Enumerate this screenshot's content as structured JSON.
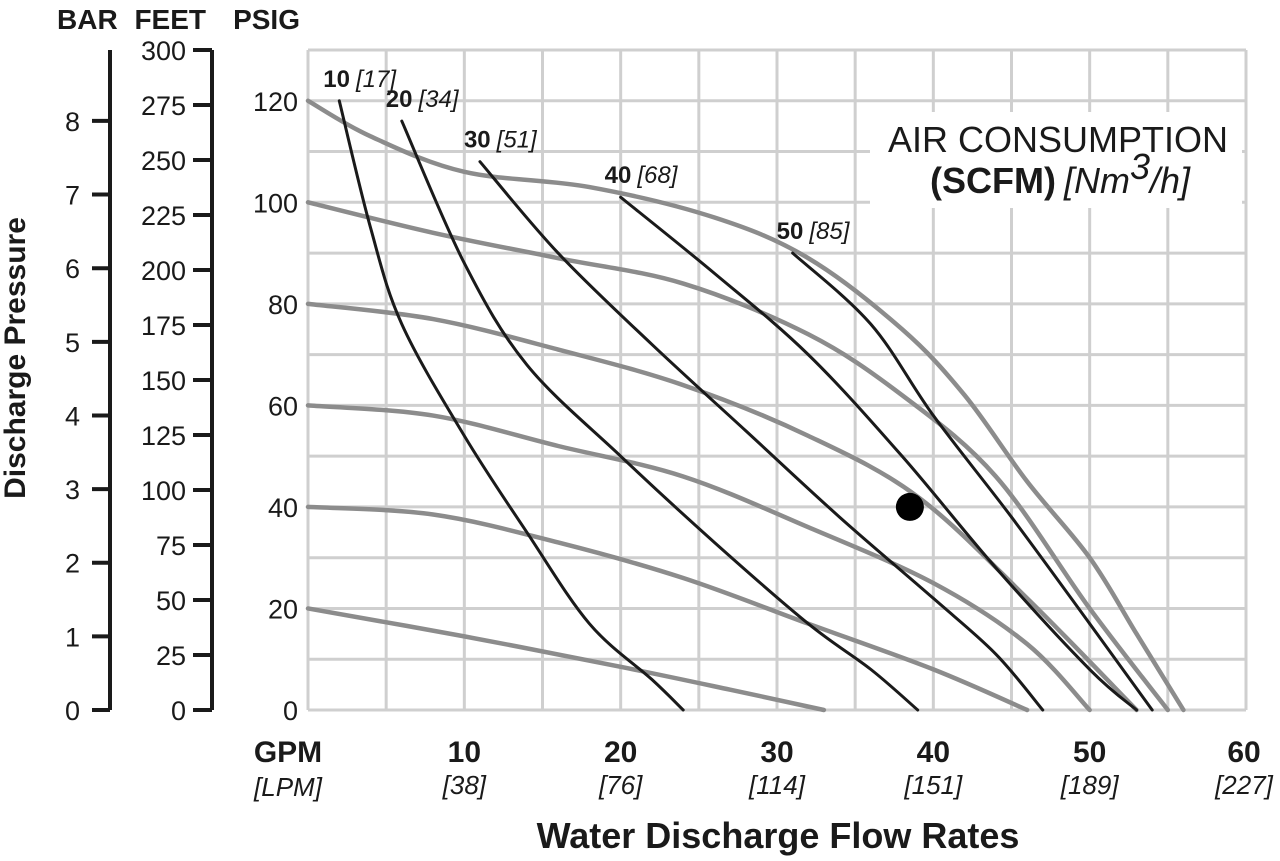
{
  "chart_data": {
    "type": "line",
    "title_line1": "AIR CONSUMPTION",
    "title_bold": "(SCFM)",
    "title_italic_pre": "[Nm",
    "title_italic_sup": "3",
    "title_italic_post": "/h]",
    "xlabel": "Water Discharge Flow Rates",
    "ylabel": "Discharge Pressure",
    "x_head": "GPM",
    "x_head_sub": "[LPM]",
    "x_ticks": [
      {
        "gpm": 10,
        "label": "10",
        "sub": "[38]"
      },
      {
        "gpm": 20,
        "label": "20",
        "sub": "[76]"
      },
      {
        "gpm": 30,
        "label": "30",
        "sub": "[114]"
      },
      {
        "gpm": 40,
        "label": "40",
        "sub": "[151]"
      },
      {
        "gpm": 50,
        "label": "50",
        "sub": "[189]"
      },
      {
        "gpm": 60,
        "label": "60",
        "sub": "[227]"
      }
    ],
    "xlim": [
      0,
      60
    ],
    "ylim": [
      0,
      130
    ],
    "psig_head": "PSIG",
    "psig_ticks": [
      "0",
      "20",
      "40",
      "60",
      "80",
      "100",
      "120"
    ],
    "feet_head": "FEET",
    "feet_ticks": [
      "0",
      "25",
      "50",
      "75",
      "100",
      "125",
      "150",
      "175",
      "200",
      "225",
      "250",
      "275",
      "300"
    ],
    "bar_head": "BAR",
    "bar_ticks": [
      "0",
      "1",
      "2",
      "3",
      "4",
      "5",
      "6",
      "7",
      "8"
    ],
    "pressure_curves": [
      {
        "points": [
          [
            0,
            20
          ],
          [
            10,
            14.5
          ],
          [
            20,
            8.5
          ],
          [
            27,
            4
          ],
          [
            33,
            0
          ]
        ]
      },
      {
        "points": [
          [
            0,
            40
          ],
          [
            8,
            38.5
          ],
          [
            16,
            33
          ],
          [
            24,
            26
          ],
          [
            32,
            17
          ],
          [
            40,
            8
          ],
          [
            46,
            0
          ]
        ]
      },
      {
        "points": [
          [
            0,
            60
          ],
          [
            8,
            58
          ],
          [
            16,
            52
          ],
          [
            24,
            46
          ],
          [
            32,
            36
          ],
          [
            40,
            25
          ],
          [
            46,
            13
          ],
          [
            50,
            0
          ]
        ]
      },
      {
        "points": [
          [
            0,
            80
          ],
          [
            8,
            77
          ],
          [
            16,
            71
          ],
          [
            24,
            64
          ],
          [
            32,
            54
          ],
          [
            39,
            42
          ],
          [
            46,
            22
          ],
          [
            53,
            0
          ]
        ]
      },
      {
        "points": [
          [
            0,
            100
          ],
          [
            8,
            94
          ],
          [
            16,
            89
          ],
          [
            24,
            84
          ],
          [
            32,
            74
          ],
          [
            38,
            62
          ],
          [
            44,
            46
          ],
          [
            50,
            20
          ],
          [
            55,
            0
          ]
        ]
      },
      {
        "points": [
          [
            0,
            120
          ],
          [
            4,
            113
          ],
          [
            10,
            106
          ],
          [
            18,
            103
          ],
          [
            26,
            97
          ],
          [
            32,
            89
          ],
          [
            38,
            75
          ],
          [
            42,
            62
          ],
          [
            46,
            45
          ],
          [
            50,
            30
          ],
          [
            53,
            15
          ],
          [
            56,
            0
          ]
        ]
      }
    ],
    "air_curves": [
      {
        "scfm": "10",
        "nm3h": "[17]",
        "points": [
          [
            2,
            120
          ],
          [
            4,
            95
          ],
          [
            6,
            76
          ],
          [
            10,
            54
          ],
          [
            14,
            35
          ],
          [
            18,
            17
          ],
          [
            22,
            6
          ],
          [
            24,
            0
          ]
        ]
      },
      {
        "scfm": "20",
        "nm3h": "[34]",
        "points": [
          [
            6,
            116
          ],
          [
            10,
            88
          ],
          [
            14,
            68
          ],
          [
            20,
            50
          ],
          [
            26,
            33
          ],
          [
            32,
            17
          ],
          [
            36,
            8
          ],
          [
            39,
            0
          ]
        ]
      },
      {
        "scfm": "30",
        "nm3h": "[51]",
        "points": [
          [
            11,
            108
          ],
          [
            16,
            90
          ],
          [
            22,
            72
          ],
          [
            28,
            55
          ],
          [
            34,
            38
          ],
          [
            40,
            22
          ],
          [
            44,
            11
          ],
          [
            47,
            0
          ]
        ]
      },
      {
        "scfm": "40",
        "nm3h": "[68]",
        "points": [
          [
            20,
            101
          ],
          [
            26,
            86
          ],
          [
            32,
            70
          ],
          [
            38,
            50
          ],
          [
            44,
            28
          ],
          [
            50,
            8
          ],
          [
            53,
            0
          ]
        ]
      },
      {
        "scfm": "50",
        "nm3h": "[85]",
        "points": [
          [
            31,
            90
          ],
          [
            36,
            76
          ],
          [
            40,
            58
          ],
          [
            45,
            38
          ],
          [
            50,
            17
          ],
          [
            54,
            0
          ]
        ]
      }
    ],
    "operating_point": {
      "gpm": 38.5,
      "psig": 40
    },
    "grid": true,
    "colors": {
      "pressure_curve": "#8c8c8c",
      "air_curve": "#1a1a1a",
      "grid": "#cfcfcf"
    }
  }
}
